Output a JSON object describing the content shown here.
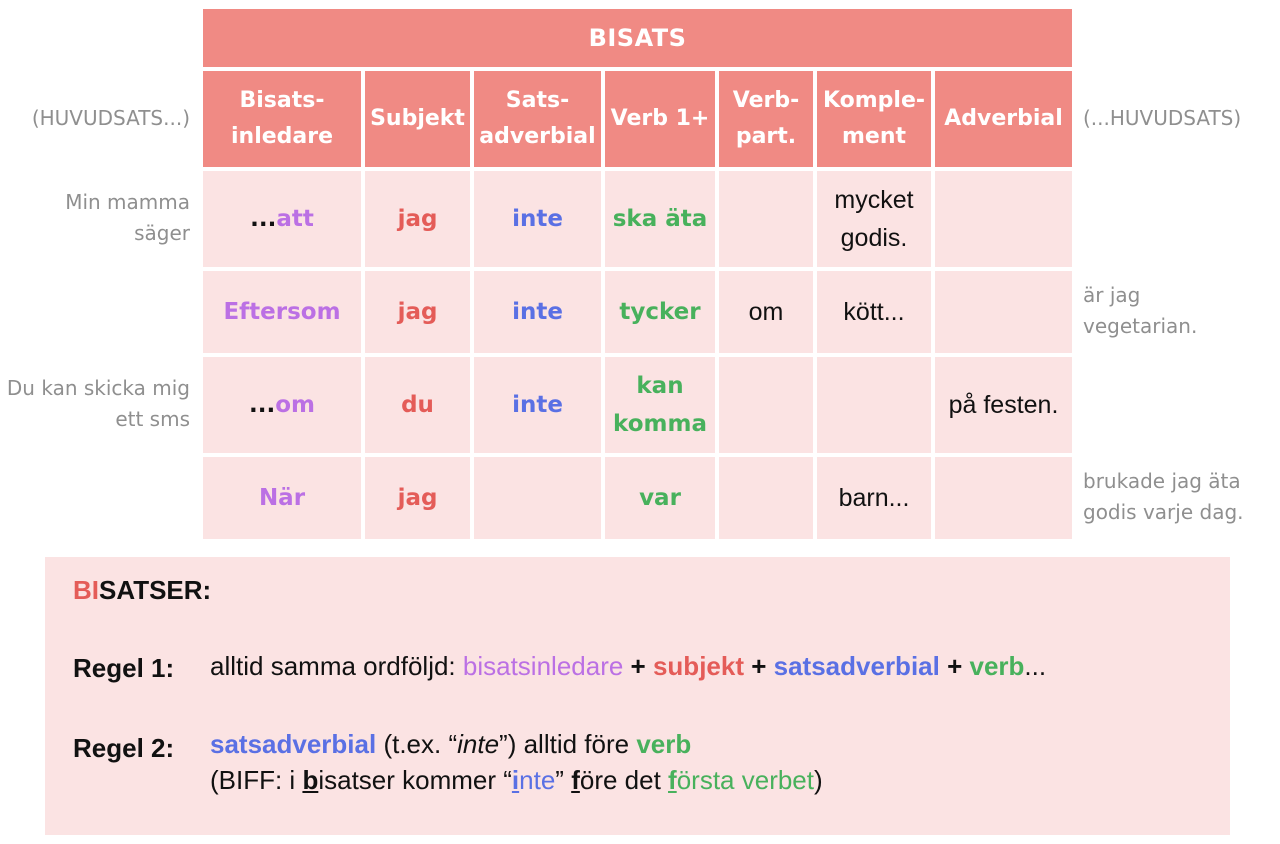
{
  "table": {
    "title": "BISATS",
    "headers": {
      "bisatsinledare_line1": "Bisats-",
      "bisatsinledare_line2": "inledare",
      "subjekt": "Subjekt",
      "satsadverbial_line1": "Sats-",
      "satsadverbial_line2": "adverbial",
      "verb": "Verb 1+",
      "verbpart_line1": "Verb-",
      "verbpart_line2": "part.",
      "komplement_line1": "Komple-",
      "komplement_line2": "ment",
      "adverbial": "Adverbial"
    },
    "left_header": "(HUVUDSATS...)",
    "right_header": "(...HUVUDSATS)",
    "rows": [
      {
        "left_line1": "Min mamma",
        "left_line2": "säger",
        "bisatsinledare_prefix": "...",
        "bisatsinledare": "att",
        "subjekt": "jag",
        "satsadverbial": "inte",
        "verb": "ska äta",
        "verbpart": "",
        "komplement_line1": "mycket",
        "komplement_line2": "godis.",
        "adverbial": "",
        "right_line1": "",
        "right_line2": ""
      },
      {
        "left_line1": "",
        "left_line2": "",
        "bisatsinledare_prefix": "",
        "bisatsinledare": "Eftersom",
        "subjekt": "jag",
        "satsadverbial": "inte",
        "verb": "tycker",
        "verbpart": "om",
        "komplement_line1": "kött...",
        "komplement_line2": "",
        "adverbial": "",
        "right_line1": "är jag",
        "right_line2": "vegetarian."
      },
      {
        "left_line1": "Du kan skicka mig",
        "left_line2": "ett sms",
        "bisatsinledare_prefix": "...",
        "bisatsinledare": "om",
        "subjekt": "du",
        "satsadverbial": "inte",
        "verb_line1": "kan",
        "verb_line2": "komma",
        "verbpart": "",
        "komplement_line1": "",
        "komplement_line2": "",
        "adverbial": "på festen.",
        "right_line1": "",
        "right_line2": ""
      },
      {
        "left_line1": "",
        "left_line2": "",
        "bisatsinledare_prefix": "",
        "bisatsinledare": "När",
        "subjekt": "jag",
        "satsadverbial": "",
        "verb": "var",
        "verbpart": "",
        "komplement_line1": "barn...",
        "komplement_line2": "",
        "adverbial": "",
        "right_line1": "brukade jag äta",
        "right_line2": "godis varje dag."
      }
    ]
  },
  "rules": {
    "heading_bi": "BI",
    "heading_rest": "SATSER:",
    "regel1_label": "Regel 1:",
    "regel1_intro": "alltid samma ordföljd: ",
    "regel1_bisatsinledare": "bisatsinledare",
    "plus": " + ",
    "regel1_subjekt": "subjekt",
    "regel1_satsadverbial": "satsadverbial",
    "regel1_verb": "verb",
    "regel1_end": "...",
    "regel2_label": "Regel 2:",
    "regel2_satsadverbial": "satsadverbial",
    "regel2_mid1": " (t.ex. “",
    "regel2_inte": "inte",
    "regel2_mid2": "”) alltid före ",
    "regel2_verb": "verb",
    "biff_open": "(BIFF: i ",
    "biff_b": "b",
    "biff_isatser": "isatser kommer “",
    "biff_i": "i",
    "biff_nte": "nte",
    "biff_close_quote": "” ",
    "biff_f": "f",
    "biff_ore": "öre det ",
    "biff_f2": "f",
    "biff_orsta": "örsta verbet",
    "biff_close": ")"
  },
  "colors": {
    "header_bg": "#f08a84",
    "body_bg": "#fbe3e3",
    "bisatsinledare": "#bb70e4",
    "subjekt": "#e45c58",
    "satsadverbial": "#5a70e4",
    "verb": "#48b15c",
    "side_text": "#8f8f8f"
  }
}
